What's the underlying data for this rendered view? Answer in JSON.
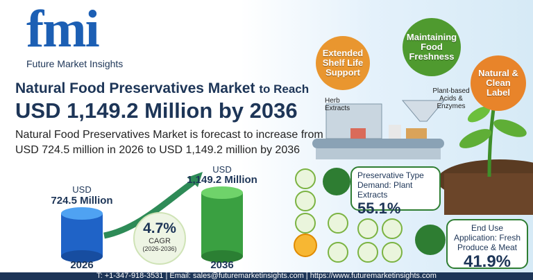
{
  "logo": {
    "mark": "fmi",
    "name": "Future Market Insights"
  },
  "headline": {
    "line1": "Natural Food Preservatives Market",
    "line1_suffix": "to Reach",
    "line2": "USD 1,149.2 Million by 2036"
  },
  "summary": [
    "Natural Food Preservatives Market is forecast to increase from",
    "USD 724.5 million in 2026 to USD 1,149.2 million by 2036"
  ],
  "bars": [
    {
      "year": "2026",
      "unit": "USD",
      "value": "724.5 Million"
    },
    {
      "year": "2036",
      "unit": "USD",
      "value": "1,149.2 Million"
    }
  ],
  "cagr": {
    "value": "4.7%",
    "label": "CAGR",
    "period": "(2026-2036)"
  },
  "bubbles": [
    "Extended Shelf Life Support",
    "Maintaining Food Freshness",
    "Natural & Clean Label"
  ],
  "process_labels": [
    "Herb Extracts",
    "Plant-based Acids & Enzymes"
  ],
  "cards": [
    {
      "label": "Preservative Type Demand: Plant Extracts",
      "value": "55.1%"
    },
    {
      "label": "End Use Application: Fresh Produce & Meat",
      "value": "41.9%"
    }
  ],
  "footer": "T: +1-347-918-3531 | Email: sales@futuremarketinsights.com | https://www.futuremarketinsights.com"
}
